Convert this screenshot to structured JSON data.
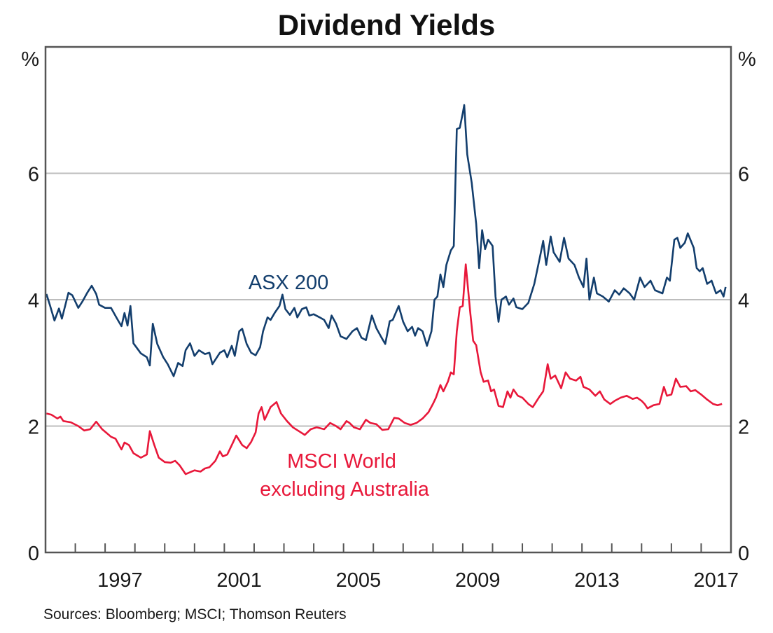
{
  "chart_data": {
    "type": "line",
    "title": "Dividend Yields",
    "ylabel_left": "%",
    "ylabel_right": "%",
    "xlabel": "",
    "xlim": [
      1995,
      2018
    ],
    "ylim": [
      0,
      8
    ],
    "yticks": [
      0,
      2,
      4,
      6
    ],
    "gridlines_at": [
      2,
      4,
      6
    ],
    "xtick_labels": [
      "1997",
      "2001",
      "2005",
      "2009",
      "2013",
      "2017"
    ],
    "source": "Sources: Bloomberg; MSCI; Thomson Reuters",
    "series": [
      {
        "name": "ASX 200",
        "label_lines": [
          "ASX 200"
        ],
        "color": "#133e6d",
        "points": [
          [
            1995.03,
            4.09
          ],
          [
            1995.15,
            3.91
          ],
          [
            1995.3,
            3.67
          ],
          [
            1995.45,
            3.86
          ],
          [
            1995.55,
            3.7
          ],
          [
            1995.77,
            4.11
          ],
          [
            1995.9,
            4.07
          ],
          [
            1996.1,
            3.87
          ],
          [
            1996.25,
            3.98
          ],
          [
            1996.4,
            4.11
          ],
          [
            1996.55,
            4.22
          ],
          [
            1996.7,
            4.09
          ],
          [
            1996.8,
            3.92
          ],
          [
            1997.0,
            3.87
          ],
          [
            1997.2,
            3.87
          ],
          [
            1997.4,
            3.7
          ],
          [
            1997.55,
            3.58
          ],
          [
            1997.65,
            3.79
          ],
          [
            1997.75,
            3.59
          ],
          [
            1997.85,
            3.9
          ],
          [
            1997.95,
            3.31
          ],
          [
            1998.2,
            3.15
          ],
          [
            1998.4,
            3.09
          ],
          [
            1998.5,
            2.96
          ],
          [
            1998.6,
            3.62
          ],
          [
            1998.75,
            3.3
          ],
          [
            1998.95,
            3.09
          ],
          [
            1999.1,
            2.98
          ],
          [
            1999.3,
            2.79
          ],
          [
            1999.45,
            3.0
          ],
          [
            1999.6,
            2.95
          ],
          [
            1999.7,
            3.2
          ],
          [
            1999.85,
            3.31
          ],
          [
            2000.0,
            3.11
          ],
          [
            2000.15,
            3.2
          ],
          [
            2000.35,
            3.14
          ],
          [
            2000.5,
            3.16
          ],
          [
            2000.6,
            2.98
          ],
          [
            2000.85,
            3.16
          ],
          [
            2001.0,
            3.2
          ],
          [
            2001.1,
            3.09
          ],
          [
            2001.25,
            3.27
          ],
          [
            2001.35,
            3.11
          ],
          [
            2001.5,
            3.5
          ],
          [
            2001.6,
            3.54
          ],
          [
            2001.75,
            3.3
          ],
          [
            2001.9,
            3.16
          ],
          [
            2002.05,
            3.12
          ],
          [
            2002.2,
            3.25
          ],
          [
            2002.3,
            3.5
          ],
          [
            2002.45,
            3.72
          ],
          [
            2002.55,
            3.68
          ],
          [
            2002.7,
            3.8
          ],
          [
            2002.85,
            3.9
          ],
          [
            2002.95,
            4.08
          ],
          [
            2003.05,
            3.85
          ],
          [
            2003.2,
            3.76
          ],
          [
            2003.35,
            3.87
          ],
          [
            2003.45,
            3.72
          ],
          [
            2003.6,
            3.85
          ],
          [
            2003.75,
            3.88
          ],
          [
            2003.85,
            3.75
          ],
          [
            2004.0,
            3.77
          ],
          [
            2004.2,
            3.72
          ],
          [
            2004.35,
            3.68
          ],
          [
            2004.5,
            3.55
          ],
          [
            2004.6,
            3.75
          ],
          [
            2004.75,
            3.62
          ],
          [
            2004.9,
            3.42
          ],
          [
            2005.1,
            3.38
          ],
          [
            2005.3,
            3.5
          ],
          [
            2005.45,
            3.55
          ],
          [
            2005.6,
            3.4
          ],
          [
            2005.75,
            3.36
          ],
          [
            2005.95,
            3.75
          ],
          [
            2006.1,
            3.55
          ],
          [
            2006.25,
            3.42
          ],
          [
            2006.4,
            3.3
          ],
          [
            2006.55,
            3.66
          ],
          [
            2006.65,
            3.68
          ],
          [
            2006.85,
            3.9
          ],
          [
            2007.0,
            3.65
          ],
          [
            2007.15,
            3.5
          ],
          [
            2007.3,
            3.57
          ],
          [
            2007.4,
            3.43
          ],
          [
            2007.5,
            3.55
          ],
          [
            2007.65,
            3.5
          ],
          [
            2007.8,
            3.27
          ],
          [
            2007.95,
            3.5
          ],
          [
            2008.05,
            4.0
          ],
          [
            2008.15,
            4.05
          ],
          [
            2008.25,
            4.4
          ],
          [
            2008.35,
            4.2
          ],
          [
            2008.45,
            4.55
          ],
          [
            2008.6,
            4.78
          ],
          [
            2008.7,
            4.85
          ],
          [
            2008.8,
            6.7
          ],
          [
            2008.9,
            6.72
          ],
          [
            2009.0,
            6.95
          ],
          [
            2009.05,
            7.08
          ],
          [
            2009.15,
            6.3
          ],
          [
            2009.3,
            5.85
          ],
          [
            2009.45,
            5.2
          ],
          [
            2009.55,
            4.5
          ],
          [
            2009.65,
            5.1
          ],
          [
            2009.75,
            4.8
          ],
          [
            2009.85,
            4.95
          ],
          [
            2010.0,
            4.85
          ],
          [
            2010.1,
            4.05
          ],
          [
            2010.2,
            3.65
          ],
          [
            2010.3,
            4.0
          ],
          [
            2010.45,
            4.05
          ],
          [
            2010.55,
            3.92
          ],
          [
            2010.7,
            4.02
          ],
          [
            2010.8,
            3.88
          ],
          [
            2011.0,
            3.85
          ],
          [
            2011.2,
            3.95
          ],
          [
            2011.4,
            4.25
          ],
          [
            2011.6,
            4.7
          ],
          [
            2011.7,
            4.93
          ],
          [
            2011.8,
            4.55
          ],
          [
            2011.95,
            5.0
          ],
          [
            2012.05,
            4.75
          ],
          [
            2012.25,
            4.6
          ],
          [
            2012.4,
            4.98
          ],
          [
            2012.55,
            4.65
          ],
          [
            2012.75,
            4.55
          ],
          [
            2012.9,
            4.35
          ],
          [
            2013.05,
            4.2
          ],
          [
            2013.15,
            4.65
          ],
          [
            2013.25,
            4.0
          ],
          [
            2013.4,
            4.35
          ],
          [
            2013.5,
            4.1
          ],
          [
            2013.7,
            4.05
          ],
          [
            2013.9,
            3.97
          ],
          [
            2014.1,
            4.15
          ],
          [
            2014.25,
            4.08
          ],
          [
            2014.4,
            4.18
          ],
          [
            2014.6,
            4.1
          ],
          [
            2014.75,
            4.0
          ],
          [
            2014.95,
            4.35
          ],
          [
            2015.1,
            4.2
          ],
          [
            2015.3,
            4.3
          ],
          [
            2015.45,
            4.15
          ],
          [
            2015.7,
            4.1
          ],
          [
            2015.85,
            4.35
          ],
          [
            2015.95,
            4.3
          ],
          [
            2016.1,
            4.95
          ],
          [
            2016.2,
            4.98
          ],
          [
            2016.3,
            4.82
          ],
          [
            2016.45,
            4.9
          ],
          [
            2016.55,
            5.05
          ],
          [
            2016.75,
            4.82
          ],
          [
            2016.85,
            4.5
          ],
          [
            2016.95,
            4.45
          ],
          [
            2017.05,
            4.5
          ],
          [
            2017.2,
            4.25
          ],
          [
            2017.35,
            4.3
          ],
          [
            2017.5,
            4.1
          ],
          [
            2017.65,
            4.15
          ],
          [
            2017.75,
            4.05
          ],
          [
            2017.82,
            4.2
          ]
        ]
      },
      {
        "name": "MSCI World excluding Australia",
        "label_lines": [
          "MSCI World",
          "excluding Australia"
        ],
        "color": "#e8183a",
        "points": [
          [
            1995.03,
            2.2
          ],
          [
            1995.2,
            2.18
          ],
          [
            1995.4,
            2.12
          ],
          [
            1995.5,
            2.15
          ],
          [
            1995.6,
            2.08
          ],
          [
            1995.85,
            2.06
          ],
          [
            1996.1,
            2.0
          ],
          [
            1996.3,
            1.93
          ],
          [
            1996.5,
            1.95
          ],
          [
            1996.7,
            2.07
          ],
          [
            1996.9,
            1.95
          ],
          [
            1997.05,
            1.89
          ],
          [
            1997.2,
            1.83
          ],
          [
            1997.35,
            1.8
          ],
          [
            1997.55,
            1.63
          ],
          [
            1997.65,
            1.74
          ],
          [
            1997.8,
            1.7
          ],
          [
            1997.95,
            1.57
          ],
          [
            1998.2,
            1.5
          ],
          [
            1998.4,
            1.55
          ],
          [
            1998.5,
            1.92
          ],
          [
            1998.65,
            1.7
          ],
          [
            1998.8,
            1.5
          ],
          [
            1999.0,
            1.43
          ],
          [
            1999.2,
            1.42
          ],
          [
            1999.35,
            1.45
          ],
          [
            1999.5,
            1.38
          ],
          [
            1999.7,
            1.24
          ],
          [
            1999.85,
            1.27
          ],
          [
            2000.0,
            1.3
          ],
          [
            2000.2,
            1.28
          ],
          [
            2000.35,
            1.33
          ],
          [
            2000.5,
            1.35
          ],
          [
            2000.7,
            1.45
          ],
          [
            2000.85,
            1.6
          ],
          [
            2000.95,
            1.52
          ],
          [
            2001.1,
            1.55
          ],
          [
            2001.3,
            1.75
          ],
          [
            2001.4,
            1.85
          ],
          [
            2001.6,
            1.7
          ],
          [
            2001.75,
            1.65
          ],
          [
            2001.9,
            1.75
          ],
          [
            2002.05,
            1.9
          ],
          [
            2002.15,
            2.2
          ],
          [
            2002.25,
            2.3
          ],
          [
            2002.35,
            2.1
          ],
          [
            2002.55,
            2.3
          ],
          [
            2002.75,
            2.38
          ],
          [
            2002.9,
            2.2
          ],
          [
            2003.1,
            2.08
          ],
          [
            2003.3,
            1.98
          ],
          [
            2003.5,
            1.92
          ],
          [
            2003.7,
            1.86
          ],
          [
            2003.9,
            1.95
          ],
          [
            2004.1,
            1.98
          ],
          [
            2004.35,
            1.95
          ],
          [
            2004.55,
            2.05
          ],
          [
            2004.75,
            2.0
          ],
          [
            2004.9,
            1.95
          ],
          [
            2005.1,
            2.08
          ],
          [
            2005.2,
            2.05
          ],
          [
            2005.35,
            1.98
          ],
          [
            2005.55,
            1.95
          ],
          [
            2005.75,
            2.1
          ],
          [
            2005.9,
            2.05
          ],
          [
            2006.1,
            2.03
          ],
          [
            2006.3,
            1.94
          ],
          [
            2006.5,
            1.95
          ],
          [
            2006.7,
            2.13
          ],
          [
            2006.85,
            2.12
          ],
          [
            2007.05,
            2.05
          ],
          [
            2007.25,
            2.02
          ],
          [
            2007.45,
            2.05
          ],
          [
            2007.65,
            2.12
          ],
          [
            2007.85,
            2.22
          ],
          [
            2008.0,
            2.35
          ],
          [
            2008.1,
            2.45
          ],
          [
            2008.25,
            2.65
          ],
          [
            2008.35,
            2.55
          ],
          [
            2008.5,
            2.7
          ],
          [
            2008.6,
            2.85
          ],
          [
            2008.7,
            2.82
          ],
          [
            2008.8,
            3.5
          ],
          [
            2008.9,
            3.88
          ],
          [
            2009.0,
            3.9
          ],
          [
            2009.1,
            4.56
          ],
          [
            2009.25,
            3.8
          ],
          [
            2009.35,
            3.35
          ],
          [
            2009.45,
            3.28
          ],
          [
            2009.6,
            2.85
          ],
          [
            2009.7,
            2.7
          ],
          [
            2009.85,
            2.72
          ],
          [
            2009.95,
            2.55
          ],
          [
            2010.05,
            2.58
          ],
          [
            2010.2,
            2.32
          ],
          [
            2010.35,
            2.3
          ],
          [
            2010.5,
            2.55
          ],
          [
            2010.6,
            2.45
          ],
          [
            2010.7,
            2.58
          ],
          [
            2010.85,
            2.48
          ],
          [
            2011.0,
            2.45
          ],
          [
            2011.2,
            2.35
          ],
          [
            2011.35,
            2.3
          ],
          [
            2011.55,
            2.45
          ],
          [
            2011.7,
            2.55
          ],
          [
            2011.85,
            2.98
          ],
          [
            2011.95,
            2.75
          ],
          [
            2012.1,
            2.8
          ],
          [
            2012.3,
            2.6
          ],
          [
            2012.45,
            2.85
          ],
          [
            2012.6,
            2.75
          ],
          [
            2012.8,
            2.72
          ],
          [
            2012.95,
            2.78
          ],
          [
            2013.05,
            2.62
          ],
          [
            2013.25,
            2.58
          ],
          [
            2013.45,
            2.48
          ],
          [
            2013.6,
            2.55
          ],
          [
            2013.75,
            2.42
          ],
          [
            2013.95,
            2.35
          ],
          [
            2014.1,
            2.4
          ],
          [
            2014.3,
            2.45
          ],
          [
            2014.5,
            2.48
          ],
          [
            2014.7,
            2.43
          ],
          [
            2014.85,
            2.45
          ],
          [
            2015.0,
            2.4
          ],
          [
            2015.1,
            2.35
          ],
          [
            2015.2,
            2.28
          ],
          [
            2015.4,
            2.33
          ],
          [
            2015.6,
            2.35
          ],
          [
            2015.75,
            2.62
          ],
          [
            2015.85,
            2.48
          ],
          [
            2016.0,
            2.5
          ],
          [
            2016.15,
            2.75
          ],
          [
            2016.3,
            2.62
          ],
          [
            2016.5,
            2.63
          ],
          [
            2016.65,
            2.55
          ],
          [
            2016.8,
            2.57
          ],
          [
            2017.0,
            2.5
          ],
          [
            2017.2,
            2.42
          ],
          [
            2017.4,
            2.35
          ],
          [
            2017.55,
            2.33
          ],
          [
            2017.7,
            2.35
          ]
        ]
      }
    ]
  },
  "colors": {
    "axis": "#555555",
    "grid": "#bdbdbd",
    "text": "#1a1a1a"
  }
}
